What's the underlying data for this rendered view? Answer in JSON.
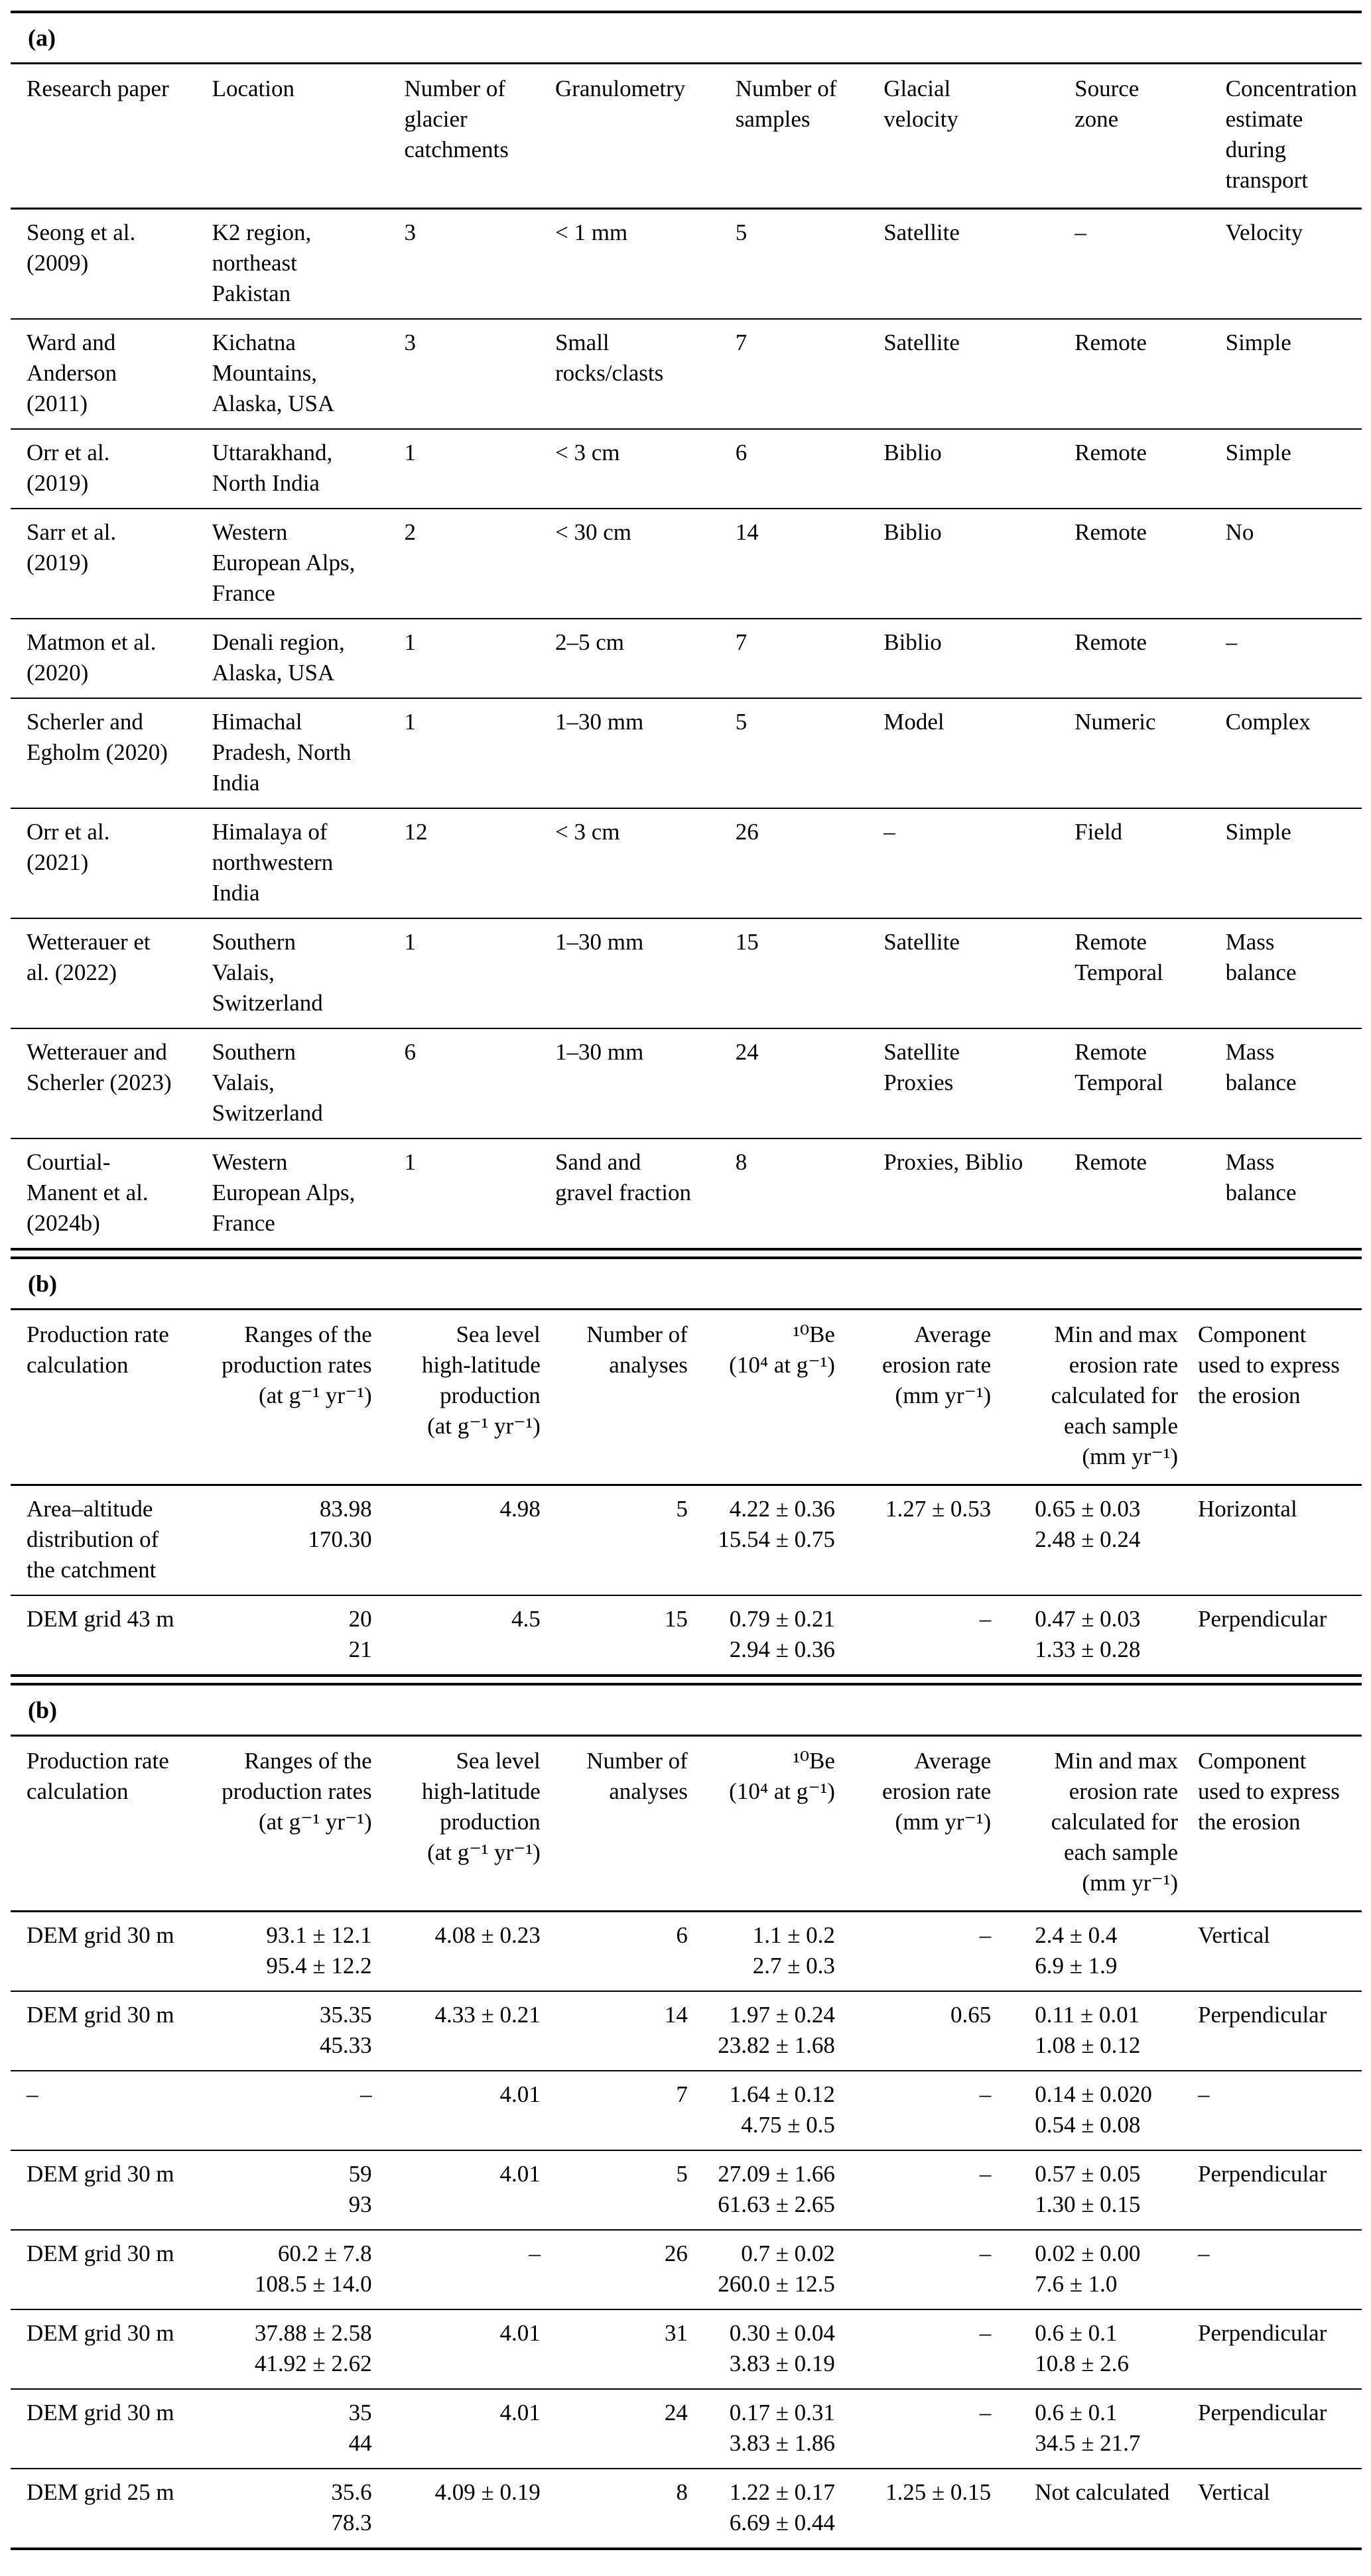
{
  "page": {
    "background_color": "#ffffff",
    "text_color": "#000000"
  },
  "tables": [
    {
      "label": "(a)",
      "columns": [
        {
          "header": "Research paper",
          "align": "left"
        },
        {
          "header": "Location",
          "align": "left"
        },
        {
          "header": "Number of\nglacier\ncatchments",
          "align": "left"
        },
        {
          "header": "Granulometry",
          "align": "left"
        },
        {
          "header": "Number of\nsamples",
          "align": "left"
        },
        {
          "header": "Glacial\nvelocity",
          "align": "left"
        },
        {
          "header": "Source\nzone",
          "align": "left"
        },
        {
          "header": "Concentration\nestimate\nduring\ntransport",
          "align": "left"
        }
      ],
      "rows": [
        [
          "Seong et al.\n(2009)",
          "K2 region,\nnortheast\nPakistan",
          "3",
          "< 1 mm",
          "5",
          "Satellite",
          "–",
          "Velocity"
        ],
        [
          "Ward and\nAnderson\n(2011)",
          "Kichatna\nMountains,\nAlaska, USA",
          "3",
          "Small\nrocks/clasts",
          "7",
          "Satellite",
          "Remote",
          "Simple"
        ],
        [
          "Orr et al.\n(2019)",
          "Uttarakhand,\nNorth India",
          "1",
          "< 3 cm",
          "6",
          "Biblio",
          "Remote",
          "Simple"
        ],
        [
          "Sarr et al.\n(2019)",
          "Western\nEuropean Alps,\nFrance",
          "2",
          "< 30 cm",
          "14",
          "Biblio",
          "Remote",
          "No"
        ],
        [
          "Matmon et al.\n(2020)",
          "Denali region,\nAlaska, USA",
          "1",
          "2–5 cm",
          "7",
          "Biblio",
          "Remote",
          "–"
        ],
        [
          "Scherler and\nEgholm (2020)",
          "Himachal\nPradesh, North\nIndia",
          "1",
          "1–30 mm",
          "5",
          "Model",
          "Numeric",
          "Complex"
        ],
        [
          "Orr et al.\n(2021)",
          "Himalaya of\nnorthwestern\nIndia",
          "12",
          "< 3 cm",
          "26",
          "–",
          "Field",
          "Simple"
        ],
        [
          "Wetterauer et\nal. (2022)",
          "Southern\nValais,\nSwitzerland",
          "1",
          "1–30 mm",
          "15",
          "Satellite",
          "Remote\nTemporal",
          "Mass\nbalance"
        ],
        [
          "Wetterauer and\nScherler (2023)",
          "Southern\nValais,\nSwitzerland",
          "6",
          "1–30 mm",
          "24",
          "Satellite\nProxies",
          "Remote\nTemporal",
          "Mass\nbalance"
        ],
        [
          "Courtial-\nManent et al.\n(2024b)",
          "Western\nEuropean Alps,\nFrance",
          "1",
          "Sand and\ngravel fraction",
          "8",
          "Proxies, Biblio",
          "Remote",
          "Mass\nbalance"
        ]
      ]
    },
    {
      "label": "(b)",
      "columns": [
        {
          "header": "Production rate\ncalculation",
          "align": "left"
        },
        {
          "header": "Ranges of the\nproduction rates\n(at g⁻¹ yr⁻¹)",
          "align": "right"
        },
        {
          "header": "Sea level\nhigh-latitude\nproduction\n(at g⁻¹ yr⁻¹)",
          "align": "right"
        },
        {
          "header": "Number of\nanalyses",
          "align": "right"
        },
        {
          "header": "¹⁰Be\n(10⁴ at g⁻¹)",
          "align": "right"
        },
        {
          "header": "Average\nerosion rate\n(mm yr⁻¹)",
          "align": "right"
        },
        {
          "header": "Min and max\nerosion rate\ncalculated for\neach sample\n(mm yr⁻¹)",
          "align": "left",
          "header_align": "right"
        },
        {
          "header": "Component\nused to express\nthe erosion",
          "align": "left"
        }
      ],
      "rows": [
        [
          "Area–altitude\ndistribution of\nthe catchment",
          "83.98\n170.30",
          "4.98",
          "5",
          "4.22 ± 0.36\n15.54 ± 0.75",
          "1.27 ± 0.53",
          "0.65 ± 0.03\n2.48 ± 0.24",
          "Horizontal"
        ],
        [
          "DEM grid 43 m",
          "20\n21",
          "4.5",
          "15",
          "0.79 ± 0.21\n2.94 ± 0.36",
          "–",
          "0.47 ± 0.03\n1.33 ± 0.28",
          "Perpendicular"
        ]
      ]
    },
    {
      "label": "(b)",
      "columns": [
        {
          "header": "Production rate\ncalculation",
          "align": "left"
        },
        {
          "header": "Ranges of the\nproduction rates\n(at g⁻¹ yr⁻¹)",
          "align": "right"
        },
        {
          "header": "Sea level\nhigh-latitude\nproduction\n(at g⁻¹ yr⁻¹)",
          "align": "right"
        },
        {
          "header": "Number of\nanalyses",
          "align": "right"
        },
        {
          "header": "¹⁰Be\n(10⁴ at g⁻¹)",
          "align": "right"
        },
        {
          "header": "Average\nerosion rate\n(mm yr⁻¹)",
          "align": "right"
        },
        {
          "header": "Min and max\nerosion rate\ncalculated for\neach sample\n(mm yr⁻¹)",
          "align": "left",
          "header_align": "right"
        },
        {
          "header": "Component\nused to express\nthe erosion",
          "align": "left"
        }
      ],
      "rows": [
        [
          "DEM grid 30 m",
          "93.1 ± 12.1\n95.4 ± 12.2",
          "4.08 ± 0.23",
          "6",
          "1.1 ± 0.2\n2.7 ± 0.3",
          "–",
          "2.4 ± 0.4\n6.9 ± 1.9",
          "Vertical"
        ],
        [
          "DEM grid 30 m",
          "35.35\n45.33",
          "4.33 ± 0.21",
          "14",
          "1.97 ± 0.24\n23.82 ± 1.68",
          "0.65",
          "0.11 ± 0.01\n1.08 ± 0.12",
          "Perpendicular"
        ],
        [
          "–",
          "–",
          "4.01",
          "7",
          "1.64 ± 0.12\n4.75 ± 0.5",
          "–",
          "0.14 ± 0.020\n0.54 ± 0.08",
          "–"
        ],
        [
          "DEM grid 30 m",
          "59\n93",
          "4.01",
          "5",
          "27.09 ± 1.66\n61.63 ± 2.65",
          "–",
          "0.57 ± 0.05\n1.30 ± 0.15",
          "Perpendicular"
        ],
        [
          "DEM grid 30 m",
          "60.2 ± 7.8\n108.5 ± 14.0",
          "–",
          "26",
          "0.7 ± 0.02\n260.0 ± 12.5",
          "–",
          "0.02 ± 0.00\n7.6 ± 1.0",
          "–"
        ],
        [
          "DEM grid 30 m",
          "37.88 ± 2.58\n41.92 ± 2.62",
          "4.01",
          "31",
          "0.30 ± 0.04\n3.83 ± 0.19",
          "–",
          "0.6 ± 0.1\n10.8 ± 2.6",
          "Perpendicular"
        ],
        [
          "DEM grid 30 m",
          "35\n44",
          "4.01",
          "24",
          "0.17 ± 0.31\n3.83 ± 1.86",
          "–",
          "0.6 ± 0.1\n34.5 ± 21.7",
          "Perpendicular"
        ],
        [
          "DEM grid 25 m",
          "35.6\n78.3",
          "4.09 ± 0.19",
          "8",
          "1.22 ± 0.17\n6.69 ± 0.44",
          "1.25 ± 0.15",
          "Not calculated",
          "Vertical"
        ]
      ]
    }
  ]
}
